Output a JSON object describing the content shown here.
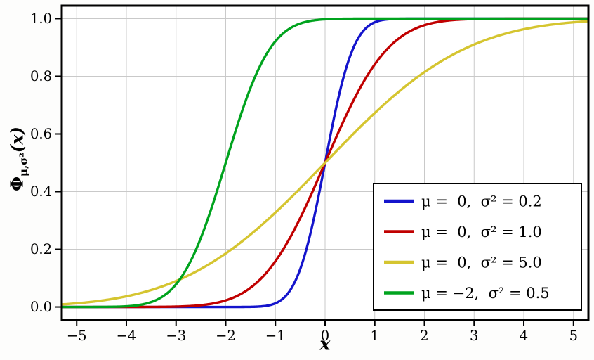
{
  "style": {
    "background": "#fdfdfc",
    "plot_background": "#ffffff",
    "grid_color": "#c9c9c9",
    "frame_color": "#000000",
    "tick_color": "#000000",
    "text_color": "#000000",
    "line_width": 3.4,
    "legend_border_color": "#000000",
    "legend_background": "#ffffff"
  },
  "chart_data": {
    "type": "line",
    "title": "",
    "xlabel": "x",
    "ylabel": {
      "base": "Φ",
      "subscript": "μ,σ²",
      "suffix": "(x)"
    },
    "xlim": [
      -5.3,
      5.3
    ],
    "ylim": [
      -0.045,
      1.045
    ],
    "grid": true,
    "legend_position": "lower right",
    "x_ticks": [
      -5,
      -4,
      -3,
      -2,
      -1,
      0,
      1,
      2,
      3,
      4,
      5
    ],
    "x_tick_labels": [
      "−5",
      "−4",
      "−3",
      "−2",
      "−1",
      "0",
      "1",
      "2",
      "3",
      "4",
      "5"
    ],
    "y_ticks": [
      0,
      0.2,
      0.4,
      0.6,
      0.8,
      1.0
    ],
    "y_tick_labels": [
      "0.0",
      "0.2",
      "0.4",
      "0.6",
      "0.8",
      "1.0"
    ],
    "curve": "normal_cdf",
    "x_samples": [
      -5,
      -4,
      -3,
      -2,
      -1,
      0,
      1,
      2,
      3,
      4,
      5
    ],
    "series": [
      {
        "label": "μ =  0,  σ² = 0.2",
        "mu": 0,
        "sigma2": 0.2,
        "color": "#1414cc",
        "values_at_integer_x": [
          0.0,
          0.0,
          0.0,
          0.0,
          0.0127,
          0.5,
          0.9873,
          1.0,
          1.0,
          1.0,
          1.0
        ]
      },
      {
        "label": "μ =  0,  σ² = 1.0",
        "mu": 0,
        "sigma2": 1.0,
        "color": "#c00000",
        "values_at_integer_x": [
          0.0,
          0.0,
          0.0013,
          0.0228,
          0.1587,
          0.5,
          0.8413,
          0.9772,
          0.9987,
          1.0,
          1.0
        ]
      },
      {
        "label": "μ =  0,  σ² = 5.0",
        "mu": 0,
        "sigma2": 5.0,
        "color": "#d5c530",
        "values_at_integer_x": [
          0.0127,
          0.0368,
          0.0899,
          0.1855,
          0.3274,
          0.5,
          0.6726,
          0.8145,
          0.9101,
          0.9632,
          0.9873
        ]
      },
      {
        "label": "μ = −2,  σ² = 0.5",
        "mu": -2,
        "sigma2": 0.5,
        "color": "#00a31e",
        "values_at_integer_x": [
          0.0,
          0.0023,
          0.0786,
          0.5,
          0.9214,
          0.9977,
          1.0,
          1.0,
          1.0,
          1.0,
          1.0
        ]
      }
    ]
  }
}
